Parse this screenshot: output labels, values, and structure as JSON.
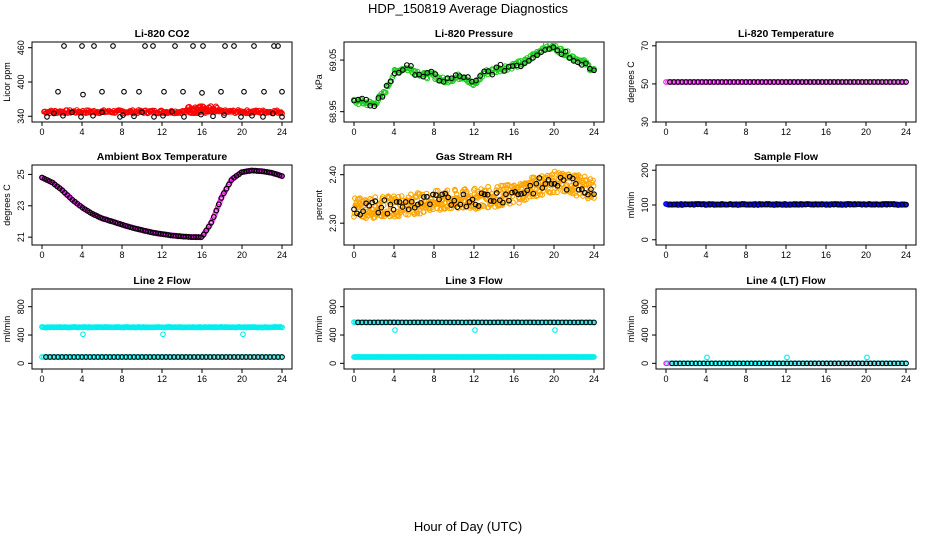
{
  "figure": {
    "title": "HDP_150819  Average Diagnostics",
    "xlabel": "Hour of Day (UTC)"
  },
  "colors": {
    "black": "#000000",
    "red": "#ff0000",
    "green": "#22cc22",
    "magenta": "#ee22ee",
    "orange": "#ffa500",
    "blue": "#0000ff",
    "cyan": "#00eeee"
  },
  "chart_data": [
    {
      "type": "scatter",
      "id": "p1",
      "title": "Li-820 CO2",
      "ylabel": "Licor ppm",
      "xlim": [
        0,
        24
      ],
      "ylim": [
        330,
        470
      ],
      "xticks": [
        "0",
        "4",
        "8",
        "12",
        "16",
        "20",
        "24"
      ],
      "yticks": [
        {
          "v": 340,
          "label": "340"
        },
        {
          "v": 400,
          "label": "400"
        },
        {
          "v": 460,
          "label": "460"
        }
      ],
      "series": [
        {
          "name": "CO2 dense (red)",
          "color": "red",
          "kind": "band",
          "x_range": [
            0.2,
            24
          ],
          "value": 348,
          "noise": 3,
          "n": 240
        },
        {
          "name": "CO2 bump (red)",
          "color": "red",
          "kind": "band",
          "x_range": [
            14.5,
            17.5
          ],
          "value": 354,
          "noise": 4,
          "n": 30
        },
        {
          "name": "CO2 outliers high",
          "color": "black",
          "kind": "points",
          "x": [
            2.2,
            4.0,
            5.2,
            7.1,
            10.3,
            11.1,
            13.3,
            15.1,
            16.1,
            18.3,
            19.2,
            21.2,
            23.2,
            23.6
          ],
          "y": [
            463,
            463,
            463,
            463,
            463,
            463,
            463,
            463,
            463,
            463,
            463,
            463,
            463,
            463
          ]
        },
        {
          "name": "CO2 outliers mid",
          "color": "black",
          "kind": "points",
          "x": [
            1.6,
            4.1,
            6.0,
            8.2,
            9.7,
            12.2,
            14.1,
            16.0,
            17.9,
            20.2,
            22.2,
            24.0
          ],
          "y": [
            383,
            378,
            383,
            383,
            383,
            383,
            383,
            381,
            383,
            383,
            383,
            383
          ]
        },
        {
          "name": "CO2 outliers low",
          "color": "black",
          "kind": "points",
          "x": [
            0.5,
            1.2,
            2.1,
            3.0,
            3.9,
            5.1,
            6.0,
            7.8,
            8.1,
            9.2,
            10.0,
            11.2,
            12.1,
            13.0,
            14.2,
            15.9,
            17.1,
            18.2,
            19.9,
            21.0,
            22.1,
            23.1,
            24.0
          ],
          "y": [
            339,
            345,
            341,
            347,
            339,
            341,
            347,
            339,
            342,
            340,
            347,
            339,
            341,
            348,
            339,
            343,
            340,
            342,
            339,
            341,
            339,
            345,
            339
          ]
        }
      ]
    },
    {
      "type": "scatter",
      "id": "p2",
      "title": "Li-820 Pressure",
      "ylabel": "kPa",
      "xlim": [
        0,
        24
      ],
      "ylim": [
        68.93,
        69.085
      ],
      "xticks": [
        "0",
        "4",
        "8",
        "12",
        "16",
        "20",
        "24"
      ],
      "yticks": [
        {
          "v": 68.95,
          "label": "68.95"
        },
        {
          "v": 69.05,
          "label": "69.05"
        }
      ],
      "series": [
        {
          "name": "Pressure dense (green)",
          "color": "green",
          "kind": "curve",
          "x": [
            0,
            2,
            3,
            4,
            5,
            6,
            7,
            8,
            9,
            10,
            11,
            12,
            13,
            14,
            15,
            16,
            17,
            18,
            19,
            20,
            21,
            22,
            23,
            24
          ],
          "y": [
            68.97,
            68.965,
            68.985,
            69.025,
            69.035,
            69.03,
            69.02,
            69.02,
            69.01,
            69.015,
            69.02,
            69.0,
            69.025,
            69.03,
            69.035,
            69.04,
            69.045,
            69.06,
            69.075,
            69.075,
            69.065,
            69.055,
            69.045,
            69.03
          ],
          "noise": 0.006,
          "n": 220
        },
        {
          "name": "Pressure hourly (black)",
          "color": "black",
          "kind": "curve",
          "x": [
            0,
            2,
            3,
            4,
            5,
            6,
            7,
            8,
            9,
            10,
            11,
            12,
            13,
            14,
            15,
            16,
            17,
            18,
            19,
            20,
            21,
            22,
            23,
            24
          ],
          "y": [
            68.97,
            68.965,
            68.985,
            69.025,
            69.035,
            69.03,
            69.02,
            69.02,
            69.01,
            69.015,
            69.02,
            69.0,
            69.025,
            69.03,
            69.035,
            69.04,
            69.045,
            69.06,
            69.075,
            69.075,
            69.065,
            69.055,
            69.045,
            69.03
          ],
          "noise": 0.008,
          "n": 60
        }
      ]
    },
    {
      "type": "scatter",
      "id": "p3",
      "title": "Li-820 Temperature",
      "ylabel": "degrees C",
      "xlim": [
        0,
        24
      ],
      "ylim": [
        30,
        72
      ],
      "xticks": [
        "0",
        "4",
        "8",
        "12",
        "16",
        "20",
        "24"
      ],
      "yticks": [
        {
          "v": 30,
          "label": "30"
        },
        {
          "v": 50,
          "label": "50"
        },
        {
          "v": 70,
          "label": "70"
        }
      ],
      "series": [
        {
          "name": "Temp dense (magenta)",
          "color": "magenta",
          "kind": "band",
          "x_range": [
            0,
            24
          ],
          "value": 51,
          "noise": 0,
          "n": 120
        },
        {
          "name": "Temp hourly (black)",
          "color": "black",
          "kind": "band",
          "x_range": [
            0.4,
            24
          ],
          "value": 51,
          "noise": 0,
          "n": 60
        }
      ]
    },
    {
      "type": "scatter",
      "id": "p4",
      "title": "Ambient Box Temperature",
      "ylabel": "degrees C",
      "xlim": [
        0,
        24
      ],
      "ylim": [
        20.5,
        25.6
      ],
      "xticks": [
        "0",
        "4",
        "8",
        "12",
        "16",
        "20",
        "24"
      ],
      "yticks": [
        {
          "v": 21,
          "label": "21"
        },
        {
          "v": 23,
          "label": "23"
        },
        {
          "v": 25,
          "label": "25"
        }
      ],
      "series": [
        {
          "name": "Box temp dense (magenta)",
          "color": "magenta",
          "kind": "curve",
          "x": [
            0,
            1,
            2,
            3,
            4,
            5,
            6,
            7,
            8,
            9,
            10,
            11,
            12,
            13,
            14,
            15,
            16,
            17,
            18,
            19,
            20,
            21,
            22,
            23,
            24
          ],
          "y": [
            24.8,
            24.5,
            24.0,
            23.4,
            22.9,
            22.5,
            22.2,
            22.0,
            21.8,
            21.6,
            21.45,
            21.3,
            21.2,
            21.1,
            21.05,
            21.0,
            21.0,
            22.0,
            23.6,
            24.7,
            25.15,
            25.25,
            25.2,
            25.1,
            24.9
          ],
          "noise": 0.02,
          "n": 240
        },
        {
          "name": "Box temp hourly (black)",
          "color": "black",
          "kind": "curve",
          "x": [
            0,
            1,
            2,
            3,
            4,
            5,
            6,
            7,
            8,
            9,
            10,
            11,
            12,
            13,
            14,
            15,
            16,
            17,
            18,
            19,
            20,
            21,
            22,
            23,
            24
          ],
          "y": [
            24.8,
            24.5,
            24.0,
            23.4,
            22.9,
            22.5,
            22.2,
            22.0,
            21.8,
            21.6,
            21.45,
            21.3,
            21.2,
            21.1,
            21.05,
            21.0,
            21.0,
            22.0,
            23.6,
            24.7,
            25.15,
            25.25,
            25.2,
            25.1,
            24.9
          ],
          "noise": 0,
          "n": 96
        }
      ]
    },
    {
      "type": "scatter",
      "id": "p5",
      "title": "Gas Stream RH",
      "ylabel": "percent",
      "xlim": [
        0,
        24
      ],
      "ylim": [
        2.255,
        2.42
      ],
      "xticks": [
        "0",
        "4",
        "8",
        "12",
        "16",
        "20",
        "24"
      ],
      "yticks": [
        {
          "v": 2.3,
          "label": "2.30"
        },
        {
          "v": 2.4,
          "label": "2.40"
        }
      ],
      "series": [
        {
          "name": "RH dense (orange)",
          "color": "orange",
          "kind": "curve",
          "x": [
            0,
            4,
            8,
            12,
            16,
            18,
            20,
            22,
            24
          ],
          "y": [
            2.33,
            2.335,
            2.345,
            2.35,
            2.36,
            2.375,
            2.385,
            2.38,
            2.37
          ],
          "noise": 0.022,
          "n": 520
        },
        {
          "name": "RH hourly (black)",
          "color": "black",
          "kind": "curve",
          "x": [
            0,
            4,
            8,
            12,
            16,
            18,
            20,
            22,
            24
          ],
          "y": [
            2.33,
            2.335,
            2.345,
            2.35,
            2.36,
            2.375,
            2.385,
            2.38,
            2.37
          ],
          "noise": 0.016,
          "n": 80
        }
      ]
    },
    {
      "type": "scatter",
      "id": "p6",
      "title": "Sample Flow",
      "ylabel": "ml/min",
      "xlim": [
        0,
        24
      ],
      "ylim": [
        -15,
        215
      ],
      "xticks": [
        "0",
        "4",
        "8",
        "12",
        "16",
        "20",
        "24"
      ],
      "yticks": [
        {
          "v": 0,
          "label": "0"
        },
        {
          "v": 100,
          "label": "100"
        },
        {
          "v": 200,
          "label": "200"
        }
      ],
      "series": [
        {
          "name": "Sample flow dense (blue)",
          "color": "blue",
          "kind": "band",
          "x_range": [
            0,
            24
          ],
          "value": 102,
          "noise": 1.5,
          "n": 240
        },
        {
          "name": "Sample flow hourly (black)",
          "color": "black",
          "kind": "band",
          "x_range": [
            0.4,
            24
          ],
          "value": 101,
          "noise": 1,
          "n": 60
        }
      ]
    },
    {
      "type": "scatter",
      "id": "p7",
      "title": "Line 2 Flow",
      "ylabel": "ml/min",
      "xlim": [
        0,
        24
      ],
      "ylim": [
        -80,
        1050
      ],
      "xticks": [
        "0",
        "4",
        "8",
        "12",
        "16",
        "20",
        "24"
      ],
      "yticks": [
        {
          "v": 0,
          "label": "0"
        },
        {
          "v": 400,
          "label": "400"
        },
        {
          "v": 800,
          "label": "800"
        }
      ],
      "series": [
        {
          "name": "Line 2 high (cyan)",
          "color": "cyan",
          "kind": "band",
          "x_range": [
            0,
            24
          ],
          "value": 510,
          "noise": 4,
          "n": 200
        },
        {
          "name": "Line 2 low (cyan)",
          "color": "cyan",
          "kind": "band",
          "x_range": [
            0,
            24
          ],
          "value": 90,
          "noise": 0,
          "n": 120
        },
        {
          "name": "Line 2 low hourly (black)",
          "color": "black",
          "kind": "band",
          "x_range": [
            0.4,
            24
          ],
          "value": 90,
          "noise": 0,
          "n": 60
        },
        {
          "name": "Line 2 dips (cyan)",
          "color": "cyan",
          "kind": "points",
          "x": [
            4.1,
            12.1,
            20.1
          ],
          "y": [
            410,
            410,
            410
          ]
        }
      ]
    },
    {
      "type": "scatter",
      "id": "p8",
      "title": "Line 3 Flow",
      "ylabel": "ml/min",
      "xlim": [
        0,
        24
      ],
      "ylim": [
        -80,
        1050
      ],
      "xticks": [
        "0",
        "4",
        "8",
        "12",
        "16",
        "20",
        "24"
      ],
      "yticks": [
        {
          "v": 0,
          "label": "0"
        },
        {
          "v": 400,
          "label": "400"
        },
        {
          "v": 800,
          "label": "800"
        }
      ],
      "series": [
        {
          "name": "Line 3 high (cyan)",
          "color": "cyan",
          "kind": "band",
          "x_range": [
            0,
            24
          ],
          "value": 580,
          "noise": 3,
          "n": 160
        },
        {
          "name": "Line 3 high hourly (black)",
          "color": "black",
          "kind": "band",
          "x_range": [
            0.4,
            24
          ],
          "value": 578,
          "noise": 0,
          "n": 60
        },
        {
          "name": "Line 3 low (cyan)",
          "color": "cyan",
          "kind": "band",
          "x_range": [
            0,
            24
          ],
          "value": 90,
          "noise": 0,
          "n": 220
        },
        {
          "name": "Line 3 dips (cyan)",
          "color": "cyan",
          "kind": "points",
          "x": [
            4.1,
            12.1,
            20.1
          ],
          "y": [
            470,
            470,
            470
          ]
        }
      ]
    },
    {
      "type": "scatter",
      "id": "p9",
      "title": "Line 4 (LT) Flow",
      "ylabel": "ml/min",
      "xlim": [
        0,
        24
      ],
      "ylim": [
        -80,
        1050
      ],
      "xticks": [
        "0",
        "4",
        "8",
        "12",
        "16",
        "20",
        "24"
      ],
      "yticks": [
        {
          "v": 0,
          "label": "0"
        },
        {
          "v": 400,
          "label": "400"
        },
        {
          "v": 800,
          "label": "800"
        }
      ],
      "series": [
        {
          "name": "Line 4 flow (cyan)",
          "color": "cyan",
          "kind": "band",
          "x_range": [
            0,
            24
          ],
          "value": 0,
          "noise": 0,
          "n": 120
        },
        {
          "name": "Line 4 hourly (black)",
          "color": "black",
          "kind": "band",
          "x_range": [
            0.6,
            24
          ],
          "value": 0,
          "noise": 0,
          "n": 60
        },
        {
          "name": "Line 4 spikes (cyan)",
          "color": "cyan",
          "kind": "points",
          "x": [
            4.1,
            12.1,
            20.1
          ],
          "y": [
            85,
            85,
            85
          ]
        },
        {
          "name": "Line 4 start (magenta)",
          "color": "magenta",
          "kind": "points",
          "x": [
            0.05
          ],
          "y": [
            0
          ]
        }
      ]
    }
  ]
}
